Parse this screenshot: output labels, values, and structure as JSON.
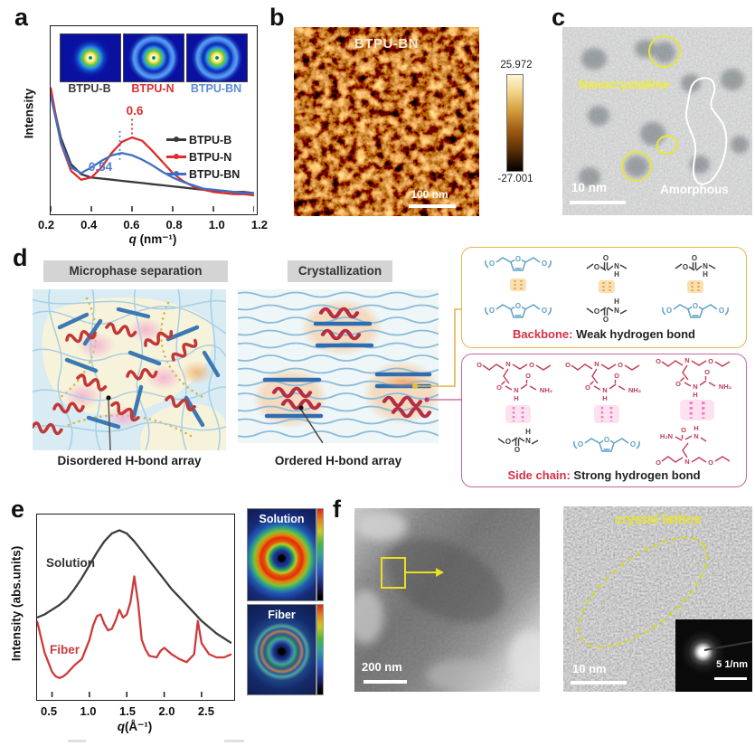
{
  "atoms": {
    "O": "O",
    "N": "N",
    "H": "H",
    "NH2": "NH₂",
    "H2N": "H₂N"
  },
  "panels": {
    "a": {
      "letter": "a",
      "insets": [
        {
          "label": "BTPU-B",
          "color": "#3c3c3c"
        },
        {
          "label": "BTPU-N",
          "color": "#d93030"
        },
        {
          "label": "BTPU-BN",
          "color": "#5b8bd8"
        }
      ],
      "ylabel": "Intensity",
      "xlabel_q": "q",
      "xlabel_rest": " (nm⁻¹)"
    },
    "b": {
      "letter": "b",
      "title": "BTPU-BN",
      "scalebar": "100 nm",
      "cbar_max": "25.972",
      "cbar_min": "-27.001"
    },
    "c": {
      "letter": "c",
      "label_nano": "Nanocrystalline",
      "label_amorph": "Amorphous",
      "scalebar": "10 nm",
      "nano_color": "#efef34",
      "amorph_color": "#ffffff"
    },
    "d": {
      "letter": "d",
      "header1": "Microphase separation",
      "header2": "Crystallization",
      "caption1": "Disordered H-bond array",
      "caption2": "Ordered H-bond array",
      "box1_term": "Backbone:",
      "box1_rest": " Weak hydrogen bond",
      "box2_term": "Side chain:",
      "box2_rest": " Strong hydrogen bond",
      "box1_border": "#e8b54a",
      "box2_border": "#c0679e"
    },
    "e": {
      "letter": "e",
      "ylabel": "Intensity (abs.units)",
      "xlabel_q": "q",
      "xlabel_rest": "(Å⁻¹)",
      "curve1": "Solution",
      "curve2": "Fiber",
      "pat1": "Solution",
      "pat2": "Fiber"
    },
    "f": {
      "letter": "f",
      "label": "crystal lattice",
      "scalebar1": "200 nm",
      "scalebar2": "10 nm",
      "scalebar3": "5 1/nm"
    }
  },
  "chart_data": [
    {
      "id": "saxs",
      "type": "line",
      "title": "",
      "xlabel": "q (nm⁻¹)",
      "ylabel": "Intensity",
      "xlim": [
        0.2,
        1.2
      ],
      "yarea": [
        0.36,
        0.96
      ],
      "grid": false,
      "legend_position": "right-middle",
      "xticks": [
        "0.2",
        "0.4",
        "0.6",
        "0.8",
        "1.0",
        "1.2"
      ],
      "series": [
        {
          "name": "BTPU-B",
          "color": "#3a3a3a",
          "x": [
            0.2,
            0.25,
            0.3,
            0.35,
            0.4,
            0.45,
            0.5,
            0.55,
            0.6,
            0.65,
            0.7,
            0.75,
            0.8,
            0.85,
            0.9,
            0.95,
            1.0,
            1.05,
            1.1,
            1.15,
            1.2
          ],
          "y": [
            1.0,
            0.6,
            0.36,
            0.27,
            0.24,
            0.23,
            0.22,
            0.21,
            0.2,
            0.19,
            0.18,
            0.17,
            0.16,
            0.15,
            0.14,
            0.13,
            0.12,
            0.12,
            0.11,
            0.11,
            0.1
          ]
        },
        {
          "name": "BTPU-N",
          "color": "#df2b2b",
          "x": [
            0.2,
            0.25,
            0.3,
            0.35,
            0.4,
            0.45,
            0.5,
            0.55,
            0.6,
            0.65,
            0.7,
            0.75,
            0.8,
            0.85,
            0.9,
            0.95,
            1.0,
            1.05,
            1.1,
            1.15,
            1.2
          ],
          "y": [
            1.05,
            0.55,
            0.3,
            0.22,
            0.24,
            0.33,
            0.46,
            0.56,
            0.6,
            0.57,
            0.48,
            0.38,
            0.28,
            0.21,
            0.16,
            0.13,
            0.11,
            0.1,
            0.09,
            0.09,
            0.08
          ]
        },
        {
          "name": "BTPU-BN",
          "color": "#3f6fc5",
          "x": [
            0.2,
            0.25,
            0.3,
            0.35,
            0.4,
            0.45,
            0.5,
            0.55,
            0.6,
            0.65,
            0.7,
            0.75,
            0.8,
            0.85,
            0.9,
            0.95,
            1.0,
            1.05,
            1.1,
            1.15,
            1.2
          ],
          "y": [
            0.98,
            0.56,
            0.33,
            0.28,
            0.33,
            0.39,
            0.44,
            0.46,
            0.44,
            0.4,
            0.35,
            0.29,
            0.24,
            0.2,
            0.17,
            0.14,
            0.13,
            0.12,
            0.11,
            0.1,
            0.1
          ]
        }
      ],
      "annotations": [
        {
          "text": "0.6",
          "x": 0.6,
          "y1f": 0.5,
          "y2f": 0.615,
          "color": "#d93030"
        },
        {
          "text": "0.54",
          "x": 0.54,
          "y1f": 0.565,
          "y2f": 0.72,
          "color": "#4f7fd0"
        }
      ]
    },
    {
      "id": "waxs",
      "type": "line",
      "title": "",
      "xlabel": "q(Å⁻¹)",
      "ylabel": "Intensity (abs.units)",
      "xlim": [
        0.3,
        2.9
      ],
      "yarea": [
        0.06,
        0.93
      ],
      "grid": false,
      "xticks": [
        "0.5",
        "1.0",
        "1.5",
        "2.0",
        "2.5"
      ],
      "series": [
        {
          "name": "Solution",
          "color": "#3d3d3d",
          "x": [
            0.3,
            0.4,
            0.5,
            0.6,
            0.7,
            0.8,
            0.9,
            1.0,
            1.1,
            1.2,
            1.3,
            1.4,
            1.5,
            1.6,
            1.7,
            1.8,
            1.9,
            2.0,
            2.1,
            2.2,
            2.3,
            2.4,
            2.5,
            2.6,
            2.7,
            2.8,
            2.9
          ],
          "y": [
            0.42,
            0.44,
            0.47,
            0.5,
            0.54,
            0.6,
            0.67,
            0.75,
            0.83,
            0.9,
            0.95,
            0.97,
            0.95,
            0.9,
            0.84,
            0.78,
            0.72,
            0.66,
            0.6,
            0.55,
            0.5,
            0.45,
            0.4,
            0.36,
            0.32,
            0.29,
            0.26
          ]
        },
        {
          "name": "Fiber",
          "color": "#cd3b3b",
          "x": [
            0.3,
            0.4,
            0.5,
            0.55,
            0.6,
            0.65,
            0.7,
            0.8,
            0.9,
            1.0,
            1.05,
            1.1,
            1.15,
            1.2,
            1.25,
            1.3,
            1.35,
            1.4,
            1.45,
            1.5,
            1.55,
            1.6,
            1.65,
            1.7,
            1.75,
            1.8,
            1.9,
            1.95,
            2.0,
            2.1,
            2.2,
            2.3,
            2.4,
            2.45,
            2.5,
            2.6,
            2.7,
            2.8,
            2.9
          ],
          "y": [
            0.4,
            0.2,
            0.08,
            0.05,
            0.04,
            0.05,
            0.07,
            0.12,
            0.16,
            0.28,
            0.37,
            0.43,
            0.44,
            0.38,
            0.34,
            0.35,
            0.4,
            0.47,
            0.42,
            0.44,
            0.52,
            0.68,
            0.52,
            0.28,
            0.22,
            0.18,
            0.17,
            0.21,
            0.23,
            0.19,
            0.16,
            0.14,
            0.19,
            0.4,
            0.26,
            0.19,
            0.17,
            0.17,
            0.19
          ]
        }
      ],
      "annotations": []
    }
  ]
}
